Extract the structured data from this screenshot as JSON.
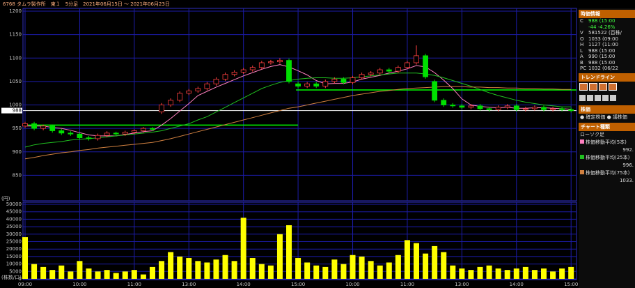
{
  "header": {
    "title": "6768 タムラ製作所　東１　5分足　2021年06月15日 〜 2021年06月23日"
  },
  "side_panel": {
    "info_title": "時価情報",
    "info_rows": [
      [
        "C",
        "988 (15:00"
      ],
      [
        "",
        "-44 -4.26%"
      ],
      [
        "V",
        "581522 (百株/"
      ],
      [
        "O",
        "1033 (09:00"
      ],
      [
        "H",
        "1127 (11:00"
      ],
      [
        "L",
        "988 (15:00"
      ],
      [
        "A",
        "990 (15:00"
      ],
      [
        "B",
        "988 (15:00"
      ],
      [
        "PC",
        "1032 (06/22"
      ]
    ],
    "trendline_title": "トレンドライン",
    "price_title": "株価",
    "price_options": [
      "確定株価",
      "議株価"
    ],
    "chart_type_title": "チャート種類",
    "chart_type": "ローソク足"
  },
  "chart_data": [
    {
      "type": "candlestick",
      "y_unit": "(円)",
      "ylim": [
        800,
        1200
      ],
      "yticks": [
        850,
        900,
        950,
        1000,
        1050,
        1100,
        1150,
        1200
      ],
      "grid": true,
      "up_color": "#ff4040",
      "down_color": "#00e000",
      "open": [
        955,
        960,
        950,
        955,
        945,
        940,
        938,
        930,
        928,
        935,
        940,
        938,
        942,
        945,
        950,
        985,
        1000,
        1010,
        1025,
        1030,
        1035,
        1045,
        1055,
        1065,
        1070,
        1075,
        1080,
        1090,
        1092,
        1095,
        1045,
        1040,
        1045,
        1040,
        1050,
        1055,
        1048,
        1058,
        1065,
        1068,
        1075,
        1072,
        1080,
        1090,
        1105,
        1050,
        1010,
        1000,
        998,
        995,
        998,
        992,
        990,
        995,
        998,
        990,
        992,
        995,
        990,
        992,
        990
      ],
      "high": [
        964,
        964,
        958,
        958,
        949,
        944,
        941,
        934,
        939,
        944,
        943,
        945,
        948,
        953,
        953,
        1004,
        1014,
        1029,
        1034,
        1039,
        1049,
        1059,
        1069,
        1074,
        1079,
        1084,
        1094,
        1096,
        1100,
        1099,
        1050,
        1049,
        1049,
        1054,
        1059,
        1059,
        1062,
        1069,
        1072,
        1079,
        1079,
        1084,
        1094,
        1127,
        1109,
        1054,
        1014,
        1004,
        1002,
        1002,
        1002,
        996,
        999,
        1002,
        1002,
        996,
        999,
        999,
        996,
        996,
        994
      ],
      "low": [
        951,
        946,
        946,
        941,
        936,
        934,
        926,
        924,
        924,
        931,
        934,
        934,
        938,
        941,
        944,
        981,
        996,
        1006,
        1021,
        1026,
        1031,
        1041,
        1051,
        1061,
        1066,
        1071,
        1076,
        1086,
        1088,
        1046,
        1036,
        1036,
        1036,
        1036,
        1046,
        1044,
        1044,
        1054,
        1061,
        1064,
        1068,
        1068,
        1076,
        1086,
        1056,
        1006,
        996,
        994,
        991,
        991,
        988,
        986,
        986,
        991,
        986,
        986,
        988,
        986,
        986,
        986,
        984
      ],
      "close": [
        960,
        950,
        955,
        945,
        940,
        938,
        930,
        928,
        935,
        940,
        938,
        942,
        945,
        950,
        948,
        1000,
        1010,
        1025,
        1030,
        1035,
        1045,
        1055,
        1065,
        1070,
        1075,
        1080,
        1090,
        1092,
        1095,
        1050,
        1040,
        1045,
        1040,
        1050,
        1055,
        1048,
        1058,
        1065,
        1068,
        1075,
        1072,
        1080,
        1090,
        1105,
        1060,
        1010,
        1000,
        998,
        995,
        998,
        992,
        990,
        995,
        998,
        990,
        992,
        995,
        990,
        992,
        990,
        988
      ],
      "series": [
        {
          "name": "株価移動平均(5本)",
          "color": "#ff80c0",
          "last_label": "992.",
          "values": [
            955,
            955,
            955,
            952,
            950,
            946,
            941,
            936,
            934,
            934,
            934,
            937,
            940,
            943,
            945,
            957,
            971,
            987,
            1003,
            1020,
            1029,
            1038,
            1046,
            1054,
            1062,
            1069,
            1076,
            1082,
            1086,
            1081,
            1073,
            1064,
            1052,
            1045,
            1046,
            1046,
            1049,
            1055,
            1059,
            1063,
            1068,
            1072,
            1077,
            1084,
            1081,
            1069,
            1053,
            1035,
            1013,
            1000,
            997,
            995,
            994,
            995,
            993,
            993,
            994,
            994,
            993,
            992,
            991
          ]
        },
        {
          "name": "株価移動平均(25本)",
          "color": "#20c020",
          "last_label": "996.",
          "values": [
            910,
            915,
            918,
            920,
            922,
            925,
            927,
            928,
            930,
            932,
            934,
            936,
            938,
            940,
            942,
            945,
            950,
            955,
            960,
            968,
            975,
            985,
            995,
            1005,
            1015,
            1025,
            1035,
            1042,
            1048,
            1052,
            1055,
            1057,
            1058,
            1058,
            1057,
            1057,
            1058,
            1060,
            1062,
            1064,
            1066,
            1068,
            1068,
            1068,
            1066,
            1063,
            1058,
            1052,
            1046,
            1040,
            1033,
            1026,
            1020,
            1015,
            1010,
            1006,
            1003,
            1000,
            998,
            996,
            996
          ]
        },
        {
          "name": "株価移動平均(75本)",
          "color": "#d08040",
          "last_label": "1033.",
          "values": [
            885,
            888,
            892,
            895,
            898,
            900,
            903,
            905,
            908,
            910,
            912,
            914,
            916,
            918,
            920,
            924,
            928,
            933,
            938,
            943,
            948,
            953,
            958,
            963,
            968,
            973,
            978,
            983,
            988,
            993,
            996,
            1000,
            1004,
            1008,
            1012,
            1016,
            1020,
            1023,
            1026,
            1029,
            1031,
            1033,
            1035,
            1036,
            1037,
            1038,
            1039,
            1039,
            1039,
            1038,
            1038,
            1037,
            1037,
            1036,
            1036,
            1035,
            1035,
            1034,
            1034,
            1033,
            1033
          ]
        }
      ],
      "hlines": [
        {
          "value": 988,
          "color": "#ffffff"
        }
      ],
      "trend_lines": [
        {
          "value": 957,
          "start": 0,
          "end": 30,
          "color": "#00ff00"
        },
        {
          "value": 1032,
          "start": 30,
          "end": 60,
          "color": "#00ff00"
        }
      ]
    },
    {
      "type": "bar",
      "y_unit": "(株数/口)",
      "color": "#ffff00",
      "ylim": [
        0,
        50000
      ],
      "yticks": [
        0,
        5000,
        10000,
        15000,
        20000,
        25000,
        30000,
        35000,
        40000,
        45000,
        50000
      ],
      "grid": true,
      "categories": [
        "09:00",
        null,
        null,
        null,
        null,
        null,
        "10:00",
        null,
        null,
        null,
        null,
        null,
        "11:00",
        null,
        null,
        null,
        null,
        null,
        "13:00",
        null,
        null,
        null,
        null,
        null,
        "14:00",
        null,
        null,
        null,
        null,
        null,
        "15:00",
        null,
        null,
        null,
        null,
        null,
        "10:00",
        null,
        null,
        null,
        null,
        null,
        "11:00",
        null,
        null,
        null,
        null,
        null,
        "13:00",
        null,
        null,
        null,
        null,
        null,
        "14:00",
        null,
        null,
        null,
        null,
        null,
        "15:00"
      ],
      "values": [
        28000,
        10000,
        8000,
        6000,
        9000,
        5000,
        12000,
        7000,
        5000,
        6000,
        4000,
        5000,
        6000,
        3000,
        8000,
        12000,
        18000,
        15000,
        14000,
        12000,
        11000,
        13000,
        16000,
        12000,
        41000,
        14000,
        10000,
        9000,
        30000,
        36000,
        14000,
        11000,
        9000,
        8000,
        13000,
        10000,
        16000,
        15000,
        12000,
        9000,
        11000,
        16000,
        26000,
        24000,
        17000,
        22000,
        18000,
        9000,
        7000,
        6000,
        8000,
        9000,
        7000,
        6000,
        7000,
        8000,
        6000,
        7000,
        5000,
        7000,
        8000
      ]
    }
  ]
}
